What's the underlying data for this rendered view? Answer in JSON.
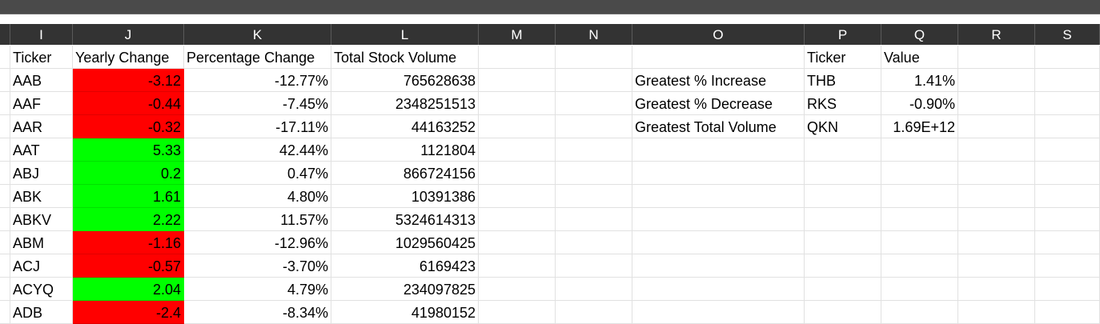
{
  "columns": [
    "I",
    "J",
    "K",
    "L",
    "M",
    "N",
    "O",
    "P",
    "Q",
    "R",
    "S"
  ],
  "headers": {
    "ticker": "Ticker",
    "yearly_change": "Yearly Change",
    "percentage_change": "Percentage Change",
    "total_volume": "Total Stock Volume",
    "summary_ticker": "Ticker",
    "summary_value": "Value"
  },
  "rows": [
    {
      "ticker": "AAB",
      "yearly_change": "-3.12",
      "percent": "-12.77%",
      "volume": "765628638",
      "status": "negative"
    },
    {
      "ticker": "AAF",
      "yearly_change": "-0.44",
      "percent": "-7.45%",
      "volume": "2348251513",
      "status": "negative"
    },
    {
      "ticker": "AAR",
      "yearly_change": "-0.32",
      "percent": "-17.11%",
      "volume": "44163252",
      "status": "negative"
    },
    {
      "ticker": "AAT",
      "yearly_change": "5.33",
      "percent": "42.44%",
      "volume": "1121804",
      "status": "positive"
    },
    {
      "ticker": "ABJ",
      "yearly_change": "0.2",
      "percent": "0.47%",
      "volume": "866724156",
      "status": "positive"
    },
    {
      "ticker": "ABK",
      "yearly_change": "1.61",
      "percent": "4.80%",
      "volume": "10391386",
      "status": "positive"
    },
    {
      "ticker": "ABKV",
      "yearly_change": "2.22",
      "percent": "11.57%",
      "volume": "5324614313",
      "status": "positive"
    },
    {
      "ticker": "ABM",
      "yearly_change": "-1.16",
      "percent": "-12.96%",
      "volume": "1029560425",
      "status": "negative"
    },
    {
      "ticker": "ACJ",
      "yearly_change": "-0.57",
      "percent": "-3.70%",
      "volume": "6169423",
      "status": "negative"
    },
    {
      "ticker": "ACYQ",
      "yearly_change": "2.04",
      "percent": "4.79%",
      "volume": "234097825",
      "status": "positive"
    },
    {
      "ticker": "ADB",
      "yearly_change": "-2.4",
      "percent": "-8.34%",
      "volume": "41980152",
      "status": "negative"
    }
  ],
  "summary": [
    {
      "label": "Greatest % Increase",
      "ticker": "THB",
      "value": "1.41%"
    },
    {
      "label": "Greatest % Decrease",
      "ticker": "RKS",
      "value": "-0.90%"
    },
    {
      "label": "Greatest Total Volume",
      "ticker": "QKN",
      "value": "1.69E+12"
    }
  ],
  "colors": {
    "positive": "#00ff00",
    "negative": "#ff0000",
    "header_bg": "#333333"
  }
}
